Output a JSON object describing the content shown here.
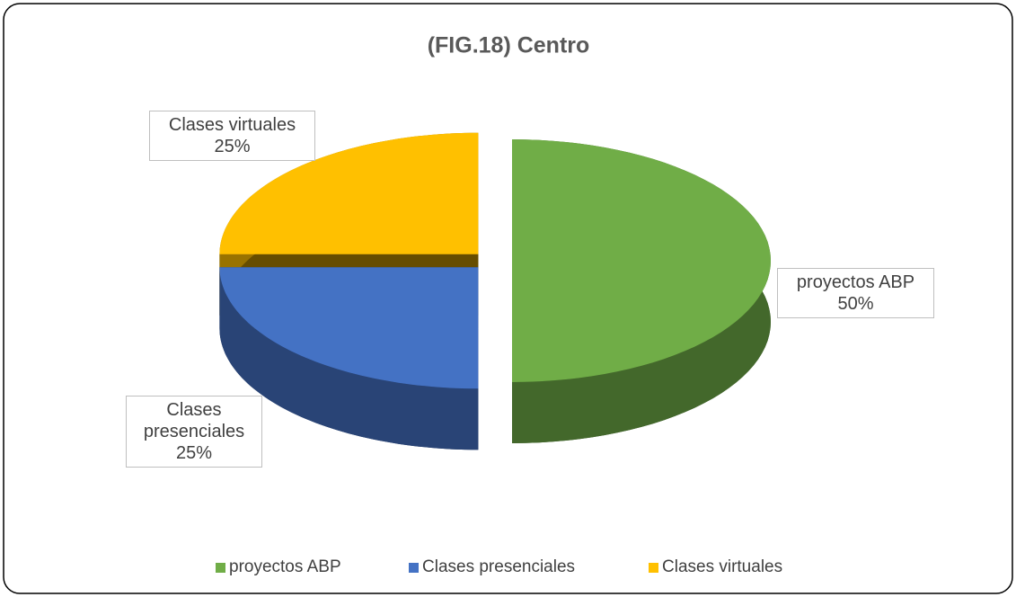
{
  "chart_data": {
    "type": "pie",
    "title": "(FIG.18) Centro",
    "categories": [
      "proyectos ABP",
      "Clases presenciales",
      "Clases virtuales"
    ],
    "values": [
      50,
      25,
      25
    ],
    "value_labels": [
      "50%",
      "25%",
      "25%"
    ],
    "colors": [
      "#70ad47",
      "#4472c4",
      "#ffc000"
    ],
    "legend": "bottom"
  }
}
